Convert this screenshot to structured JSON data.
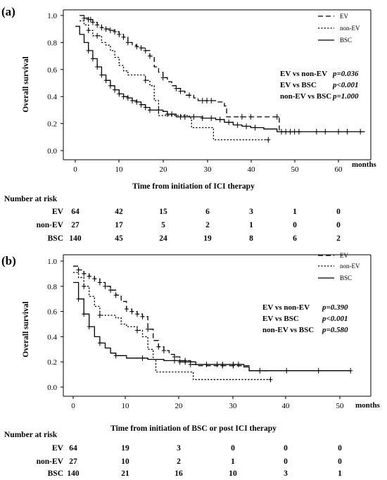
{
  "chart_data": [
    {
      "type": "line",
      "subtype": "kaplan-meier",
      "panel_label": "(a)",
      "xlabel": "Time from initiation of ICI therapy",
      "ylabel": "Overall survival",
      "x_unit": "months",
      "xlim": [
        -3,
        67
      ],
      "ylim": [
        0,
        1.05
      ],
      "xticks": [
        "0",
        "10",
        "20",
        "30",
        "40",
        "50",
        "60"
      ],
      "yticks": [
        "0.0",
        "0.2",
        "0.4",
        "0.6",
        "0.8",
        "1.0"
      ],
      "legend_position": "top-right",
      "series": [
        {
          "name": "EV",
          "style": "dashed",
          "points": [
            [
              1,
              1.0
            ],
            [
              2,
              0.98
            ],
            [
              3,
              0.97
            ],
            [
              4,
              0.95
            ],
            [
              5,
              0.93
            ],
            [
              6,
              0.91
            ],
            [
              7,
              0.9
            ],
            [
              8,
              0.89
            ],
            [
              9,
              0.88
            ],
            [
              10,
              0.86
            ],
            [
              11,
              0.84
            ],
            [
              12,
              0.8
            ],
            [
              13,
              0.78
            ],
            [
              14,
              0.77
            ],
            [
              15,
              0.76
            ],
            [
              16,
              0.74
            ],
            [
              17,
              0.7
            ],
            [
              18,
              0.62
            ],
            [
              19,
              0.58
            ],
            [
              20,
              0.54
            ],
            [
              21,
              0.51
            ],
            [
              22,
              0.48
            ],
            [
              23,
              0.46
            ],
            [
              24,
              0.44
            ],
            [
              25,
              0.41
            ],
            [
              27,
              0.39
            ],
            [
              28,
              0.37
            ],
            [
              32,
              0.36
            ],
            [
              34,
              0.33
            ],
            [
              34.5,
              0.25
            ],
            [
              46,
              0.25
            ],
            [
              46.5,
              0.14
            ],
            [
              52,
              0.14
            ]
          ],
          "censor_x": [
            2,
            3,
            3.5,
            4,
            5,
            6,
            7,
            8,
            9,
            10,
            11,
            12,
            14,
            15,
            16,
            17,
            20,
            23,
            24,
            26,
            29,
            30,
            31,
            38,
            40,
            46,
            48,
            50
          ]
        },
        {
          "name": "non-EV",
          "style": "dotted",
          "points": [
            [
              1,
              0.96
            ],
            [
              2,
              0.93
            ],
            [
              3,
              0.89
            ],
            [
              4,
              0.85
            ],
            [
              6,
              0.8
            ],
            [
              7,
              0.78
            ],
            [
              8,
              0.74
            ],
            [
              9,
              0.69
            ],
            [
              10,
              0.63
            ],
            [
              11,
              0.59
            ],
            [
              12,
              0.56
            ],
            [
              16,
              0.52
            ],
            [
              17,
              0.48
            ],
            [
              18,
              0.37
            ],
            [
              19,
              0.26
            ],
            [
              20,
              0.26
            ],
            [
              26,
              0.24
            ],
            [
              26.5,
              0.17
            ],
            [
              31,
              0.17
            ],
            [
              31.5,
              0.08
            ],
            [
              44,
              0.08
            ]
          ],
          "censor_x": [
            3,
            5,
            16,
            44
          ]
        },
        {
          "name": "BSC",
          "style": "solid",
          "points": [
            [
              0,
              0.92
            ],
            [
              1,
              0.86
            ],
            [
              2,
              0.8
            ],
            [
              3,
              0.74
            ],
            [
              4,
              0.68
            ],
            [
              5,
              0.62
            ],
            [
              6,
              0.56
            ],
            [
              7,
              0.52
            ],
            [
              8,
              0.48
            ],
            [
              9,
              0.45
            ],
            [
              10,
              0.42
            ],
            [
              11,
              0.4
            ],
            [
              12,
              0.39
            ],
            [
              13,
              0.37
            ],
            [
              14,
              0.36
            ],
            [
              15,
              0.34
            ],
            [
              16,
              0.32
            ],
            [
              17,
              0.3
            ],
            [
              20,
              0.29
            ],
            [
              21,
              0.27
            ],
            [
              23,
              0.25
            ],
            [
              27,
              0.25
            ],
            [
              29,
              0.24
            ],
            [
              32,
              0.23
            ],
            [
              34,
              0.21
            ],
            [
              36,
              0.19
            ],
            [
              38,
              0.18
            ],
            [
              40,
              0.17
            ],
            [
              43,
              0.16
            ],
            [
              46,
              0.14
            ],
            [
              66,
              0.14
            ]
          ],
          "censor_x": [
            3,
            4,
            5,
            6,
            7,
            8,
            9,
            10,
            11,
            12,
            13,
            14,
            15,
            16,
            17,
            19,
            21,
            22,
            24,
            25,
            27,
            29,
            31,
            33,
            35,
            37,
            39,
            41,
            47,
            49,
            51,
            55,
            57,
            60,
            62,
            65
          ]
        }
      ],
      "annotations": [
        {
          "label": "EV vs non-EV",
          "p": "p=0.036"
        },
        {
          "label": "EV vs BSC",
          "p": "p<0.001"
        },
        {
          "label": "non-EV vs BSC",
          "p": "p=1.000"
        }
      ],
      "risk_table": {
        "title": "Number at risk",
        "rows": [
          {
            "label": "EV",
            "values": [
              "64",
              "42",
              "15",
              "6",
              "3",
              "1",
              "0"
            ]
          },
          {
            "label": "non-EV",
            "values": [
              "27",
              "17",
              "5",
              "2",
              "1",
              "0",
              "0"
            ]
          },
          {
            "label": "BSC",
            "values": [
              "140",
              "45",
              "24",
              "19",
              "8",
              "6",
              "2"
            ]
          }
        ]
      }
    },
    {
      "type": "line",
      "subtype": "kaplan-meier",
      "panel_label": "(b)",
      "xlabel": "Time from initiation of BSC or post ICI therapy",
      "ylabel": "Overall survival",
      "x_unit": "months",
      "xlim": [
        -1.5,
        53
      ],
      "ylim": [
        0,
        1.05
      ],
      "xticks": [
        "0",
        "10",
        "20",
        "30",
        "40",
        "50"
      ],
      "yticks": [
        "0.0",
        "0.2",
        "0.4",
        "0.6",
        "0.8",
        "1.0"
      ],
      "legend_position": "top-right",
      "series": [
        {
          "name": "EV",
          "style": "dashed",
          "points": [
            [
              0,
              0.96
            ],
            [
              1,
              0.93
            ],
            [
              2,
              0.9
            ],
            [
              3,
              0.88
            ],
            [
              4,
              0.86
            ],
            [
              5,
              0.83
            ],
            [
              6,
              0.8
            ],
            [
              7,
              0.77
            ],
            [
              8,
              0.73
            ],
            [
              9,
              0.68
            ],
            [
              10,
              0.62
            ],
            [
              11,
              0.6
            ],
            [
              12,
              0.58
            ],
            [
              13,
              0.56
            ],
            [
              14,
              0.46
            ],
            [
              15,
              0.37
            ],
            [
              16,
              0.32
            ],
            [
              17,
              0.29
            ],
            [
              18,
              0.26
            ],
            [
              19,
              0.24
            ],
            [
              20,
              0.21
            ],
            [
              22,
              0.18
            ],
            [
              23,
              0.17
            ],
            [
              32,
              0.17
            ],
            [
              33,
              0.13
            ],
            [
              37,
              0.13
            ]
          ],
          "censor_x": [
            1,
            2,
            3,
            4,
            5,
            6,
            7,
            8,
            10,
            11,
            12,
            13,
            14,
            16,
            17,
            19,
            21,
            22,
            28,
            30
          ]
        },
        {
          "name": "non-EV",
          "style": "dotted",
          "points": [
            [
              0,
              0.91
            ],
            [
              1,
              0.87
            ],
            [
              2,
              0.8
            ],
            [
              3,
              0.72
            ],
            [
              4,
              0.64
            ],
            [
              5,
              0.57
            ],
            [
              8,
              0.55
            ],
            [
              9,
              0.5
            ],
            [
              10,
              0.48
            ],
            [
              12,
              0.45
            ],
            [
              13,
              0.4
            ],
            [
              14,
              0.3
            ],
            [
              15,
              0.22
            ],
            [
              15.5,
              0.12
            ],
            [
              22,
              0.12
            ],
            [
              22.5,
              0.06
            ],
            [
              37,
              0.06
            ]
          ],
          "censor_x": [
            2,
            5,
            12,
            37
          ]
        },
        {
          "name": "BSC",
          "style": "solid",
          "points": [
            [
              0,
              0.83
            ],
            [
              1,
              0.7
            ],
            [
              2,
              0.58
            ],
            [
              3,
              0.48
            ],
            [
              4,
              0.4
            ],
            [
              5,
              0.35
            ],
            [
              6,
              0.31
            ],
            [
              7,
              0.27
            ],
            [
              8,
              0.25
            ],
            [
              10,
              0.23
            ],
            [
              14,
              0.22
            ],
            [
              17,
              0.21
            ],
            [
              20,
              0.2
            ],
            [
              23,
              0.18
            ],
            [
              32,
              0.16
            ],
            [
              33,
              0.13
            ],
            [
              52,
              0.13
            ]
          ],
          "censor_x": [
            1,
            2,
            3,
            5,
            8,
            13,
            19,
            20,
            21,
            25,
            27,
            28,
            30,
            31,
            35,
            40,
            46,
            52
          ]
        }
      ],
      "annotations": [
        {
          "label": "EV vs non-EV",
          "p": "p=0.390"
        },
        {
          "label": "EV vs BSC",
          "p": "p<0.001"
        },
        {
          "label": "non-EV vs BSC",
          "p": "p=0.580"
        }
      ],
      "risk_table": {
        "title": "Number at risk",
        "rows": [
          {
            "label": "EV",
            "values": [
              "64",
              "19",
              "3",
              "0",
              "0",
              "0"
            ]
          },
          {
            "label": "non-EV",
            "values": [
              "27",
              "10",
              "2",
              "1",
              "0",
              "0"
            ]
          },
          {
            "label": "BSC",
            "values": [
              "140",
              "21",
              "16",
              "10",
              "3",
              "1"
            ]
          }
        ]
      }
    }
  ]
}
